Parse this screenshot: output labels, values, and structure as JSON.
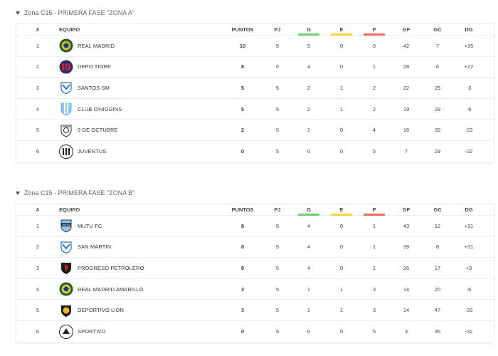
{
  "colors": {
    "win": "#6ccf6c",
    "draw": "#f2d33b",
    "loss": "#ea6b63"
  },
  "headers": {
    "pos": "#",
    "team": "EQUIPO",
    "pts": "PUNTOS",
    "pj": "PJ",
    "g": "G",
    "e": "E",
    "p": "P",
    "gf": "GF",
    "gc": "GC",
    "dg": "DG"
  },
  "groups": [
    {
      "title": "Zona C15 - PRIMERA FASE \"ZONA A\"",
      "rows": [
        {
          "pos": "1",
          "team": "REAL MADRID",
          "crest": "real-madrid-crest-icon",
          "pts": "10",
          "pj": "5",
          "g": "5",
          "e": "0",
          "p": "0",
          "gf": "42",
          "gc": "7",
          "dg": "+35"
        },
        {
          "pos": "2",
          "team": "DEPO TIGRE",
          "crest": "depo-tigre-crest-icon",
          "pts": "8",
          "pj": "5",
          "g": "4",
          "e": "0",
          "p": "1",
          "gf": "28",
          "gc": "6",
          "dg": "+22"
        },
        {
          "pos": "3",
          "team": "SANTOS SM",
          "crest": "santos-sm-crest-icon",
          "pts": "5",
          "pj": "5",
          "g": "2",
          "e": "1",
          "p": "2",
          "gf": "22",
          "gc": "25",
          "dg": "-3"
        },
        {
          "pos": "4",
          "team": "CLUB O'HIGGINS",
          "crest": "club-ohiggins-crest-icon",
          "pts": "5",
          "pj": "5",
          "g": "2",
          "e": "1",
          "p": "2",
          "gf": "19",
          "gc": "28",
          "dg": "-9"
        },
        {
          "pos": "5",
          "team": "9 DE OCTUBRE",
          "crest": "9-de-octubre-crest-icon",
          "pts": "2",
          "pj": "5",
          "g": "1",
          "e": "0",
          "p": "4",
          "gf": "16",
          "gc": "39",
          "dg": "-23"
        },
        {
          "pos": "6",
          "team": "JUVENTUS",
          "crest": "juventus-crest-icon",
          "pts": "0",
          "pj": "5",
          "g": "0",
          "e": "0",
          "p": "5",
          "gf": "7",
          "gc": "29",
          "dg": "-22"
        }
      ]
    },
    {
      "title": "Zona C15 - PRIMERA FASE \"ZONA B\"",
      "rows": [
        {
          "pos": "1",
          "team": "MUTU FC",
          "crest": "mutu-fc-crest-icon",
          "pts": "8",
          "pj": "5",
          "g": "4",
          "e": "0",
          "p": "1",
          "gf": "43",
          "gc": "12",
          "dg": "+31"
        },
        {
          "pos": "2",
          "team": "SAN MARTIN",
          "crest": "san-martin-crest-icon",
          "pts": "8",
          "pj": "5",
          "g": "4",
          "e": "0",
          "p": "1",
          "gf": "39",
          "gc": "8",
          "dg": "+31"
        },
        {
          "pos": "3",
          "team": "PROGRESO PETROLERO",
          "crest": "progreso-petrolero-crest-icon",
          "pts": "8",
          "pj": "5",
          "g": "4",
          "e": "0",
          "p": "1",
          "gf": "26",
          "gc": "17",
          "dg": "+9"
        },
        {
          "pos": "4",
          "team": "REAL MADRID AMARILLO",
          "crest": "real-madrid-amarillo-crest-icon",
          "pts": "3",
          "pj": "5",
          "g": "1",
          "e": "1",
          "p": "3",
          "gf": "14",
          "gc": "20",
          "dg": "-6"
        },
        {
          "pos": "5",
          "team": "DEPORTIVO LION",
          "crest": "deportivo-lion-crest-icon",
          "pts": "3",
          "pj": "5",
          "g": "1",
          "e": "1",
          "p": "3",
          "gf": "14",
          "gc": "47",
          "dg": "-33"
        },
        {
          "pos": "6",
          "team": "SPORTIVO",
          "crest": "sportivo-crest-icon",
          "pts": "0",
          "pj": "5",
          "g": "0",
          "e": "0",
          "p": "5",
          "gf": "3",
          "gc": "35",
          "dg": "-32"
        }
      ]
    }
  ]
}
